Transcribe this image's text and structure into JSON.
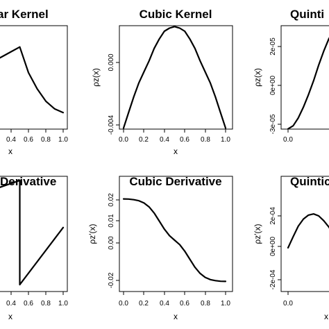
{
  "chart_data": [
    {
      "type": "line",
      "title": "Linear Kernel",
      "visible_title": "ar Kernel",
      "xlabel": "x",
      "ylabel": "",
      "xlim": [
        0,
        1
      ],
      "ylim": [
        0,
        1
      ],
      "xticks": [
        "0.4",
        "0.6",
        "0.8",
        "1.0"
      ],
      "yticks": [],
      "series": [
        {
          "x": [
            0.0,
            0.1,
            0.2,
            0.3,
            0.4,
            0.5,
            0.6,
            0.7,
            0.8,
            0.9,
            1.0
          ],
          "y": [
            0.58,
            0.62,
            0.67,
            0.72,
            0.77,
            0.82,
            0.55,
            0.38,
            0.25,
            0.17,
            0.13
          ]
        }
      ]
    },
    {
      "type": "line",
      "title": "Cubic Kernel",
      "xlabel": "x",
      "ylabel": "ρz(x)",
      "xlim": [
        0,
        1
      ],
      "ylim": [
        -0.0046,
        0.0025
      ],
      "xticks": [
        "0.0",
        "0.2",
        "0.4",
        "0.6",
        "0.8",
        "1.0"
      ],
      "yticks": [
        "-0.004",
        "0.000"
      ],
      "ytick_values": [
        -0.004,
        0.0
      ],
      "series": [
        {
          "x": [
            0.0,
            0.05,
            0.1,
            0.15,
            0.2,
            0.25,
            0.3,
            0.35,
            0.4,
            0.45,
            0.5,
            0.55,
            0.6,
            0.65,
            0.7,
            0.75,
            0.8,
            0.85,
            0.9,
            0.95,
            1.0
          ],
          "y": [
            -0.0042,
            -0.0032,
            -0.0022,
            -0.0013,
            -0.0006,
            0.0001,
            0.0009,
            0.0015,
            0.002,
            0.0022,
            0.0023,
            0.0022,
            0.002,
            0.0015,
            0.0009,
            0.0001,
            -0.0006,
            -0.0013,
            -0.0022,
            -0.0032,
            -0.0042
          ]
        }
      ]
    },
    {
      "type": "line",
      "title": "Quintic Kernel",
      "visible_title": "Quinti",
      "xlabel": "",
      "ylabel": "ρz(x)",
      "xlim": [
        0,
        1
      ],
      "ylim": [
        -3.5e-05,
        4.5e-05
      ],
      "xticks": [
        "0.0"
      ],
      "yticks": [
        "-3e-05",
        "0e+00",
        "2e-05"
      ],
      "ytick_values": [
        -3e-05,
        0,
        2e-05
      ],
      "series": [
        {
          "x": [
            0.0,
            0.05,
            0.1,
            0.15,
            0.2,
            0.25,
            0.3,
            0.35,
            0.4,
            0.5
          ],
          "y": [
            -3.3e-05,
            -3.1e-05,
            -2.6e-05,
            -1.9e-05,
            -1.1e-05,
            -2e-06,
            8e-06,
            1.7e-05,
            2.5e-05,
            3.6e-05
          ]
        }
      ]
    },
    {
      "type": "line",
      "title": "Linear Derivative",
      "visible_title": "Derivative",
      "xlabel": "x",
      "ylabel": "",
      "xlim": [
        0,
        1
      ],
      "ylim": [
        -1,
        1
      ],
      "xticks": [
        "0.4",
        "0.6",
        "0.8",
        "1.0"
      ],
      "yticks": [],
      "series": [
        {
          "x": [
            0.0,
            0.4999,
            0.5001,
            1.0
          ],
          "y": [
            0.72,
            1.0,
            -0.95,
            0.12
          ]
        }
      ]
    },
    {
      "type": "line",
      "title": "Cubic Derivative",
      "xlabel": "x",
      "ylabel": "ρz'(x)",
      "xlim": [
        0,
        1
      ],
      "ylim": [
        -0.022,
        0.022
      ],
      "xticks": [
        "0.0",
        "0.2",
        "0.4",
        "0.6",
        "0.8",
        "1.0"
      ],
      "yticks": [
        "-0.02",
        "0.00",
        "0.01",
        "0.02"
      ],
      "ytick_values": [
        -0.02,
        0.0,
        0.01,
        0.02
      ],
      "series": [
        {
          "x": [
            0.0,
            0.05,
            0.1,
            0.15,
            0.2,
            0.25,
            0.3,
            0.35,
            0.4,
            0.45,
            0.5,
            0.55,
            0.6,
            0.65,
            0.7,
            0.75,
            0.8,
            0.85,
            0.9,
            0.95,
            1.0
          ],
          "y": [
            0.0205,
            0.0204,
            0.0201,
            0.0196,
            0.0185,
            0.0165,
            0.0135,
            0.0095,
            0.0055,
            0.0022,
            0.0,
            -0.0022,
            -0.0055,
            -0.0095,
            -0.0135,
            -0.0165,
            -0.0185,
            -0.0196,
            -0.0201,
            -0.0204,
            -0.0205
          ]
        }
      ]
    },
    {
      "type": "line",
      "title": "Quintic Derivative",
      "visible_title": "Quintic",
      "xlabel": "x",
      "ylabel": "ρz'(x)",
      "xlim": [
        0,
        1
      ],
      "ylim": [
        -0.00022,
        0.00026
      ],
      "xticks": [
        "0.0"
      ],
      "yticks": [
        "-2e-04",
        "0e+00",
        "2e-04"
      ],
      "ytick_values": [
        -0.0002,
        0,
        0.0002
      ],
      "series": [
        {
          "x": [
            0.0,
            0.05,
            0.1,
            0.15,
            0.2,
            0.25,
            0.3,
            0.35,
            0.4,
            0.5
          ],
          "y": [
            0.0,
            7e-05,
            0.000135,
            0.00018,
            0.000205,
            0.000212,
            0.0002,
            0.00017,
            0.00013,
            3e-05
          ]
        }
      ]
    }
  ]
}
